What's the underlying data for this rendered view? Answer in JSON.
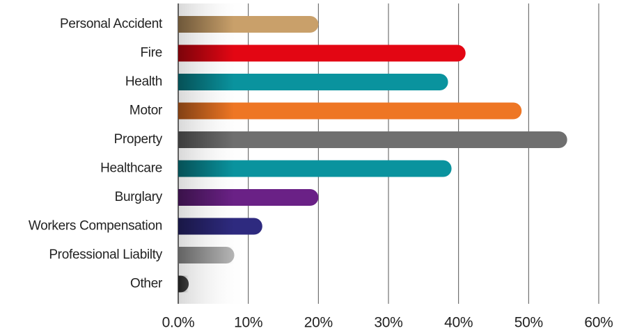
{
  "chart_data": {
    "type": "bar",
    "orientation": "horizontal",
    "categories": [
      "Personal Accident",
      "Fire",
      "Health",
      "Motor",
      "Property",
      "Healthcare",
      "Burglary",
      "Workers Compensation",
      "Professional Liabilty",
      "Other"
    ],
    "values": [
      20,
      41,
      38.5,
      49,
      55.5,
      39,
      20,
      12,
      8,
      1.5
    ],
    "colors": [
      "#c9a06a",
      "#e30613",
      "#0a939e",
      "#ee7624",
      "#6f6f6f",
      "#0a939e",
      "#6a2186",
      "#2e2a7f",
      "#b5b5b5",
      "#3a3a3a"
    ],
    "xlim": [
      0,
      60
    ],
    "xticks": [
      {
        "value": 0,
        "label": "0.0%"
      },
      {
        "value": 10,
        "label": "10%"
      },
      {
        "value": 20,
        "label": "20%"
      },
      {
        "value": 30,
        "label": "30%"
      },
      {
        "value": 40,
        "label": "40%"
      },
      {
        "value": 50,
        "label": "50%"
      },
      {
        "value": 60,
        "label": "60%"
      }
    ],
    "grid": true
  }
}
